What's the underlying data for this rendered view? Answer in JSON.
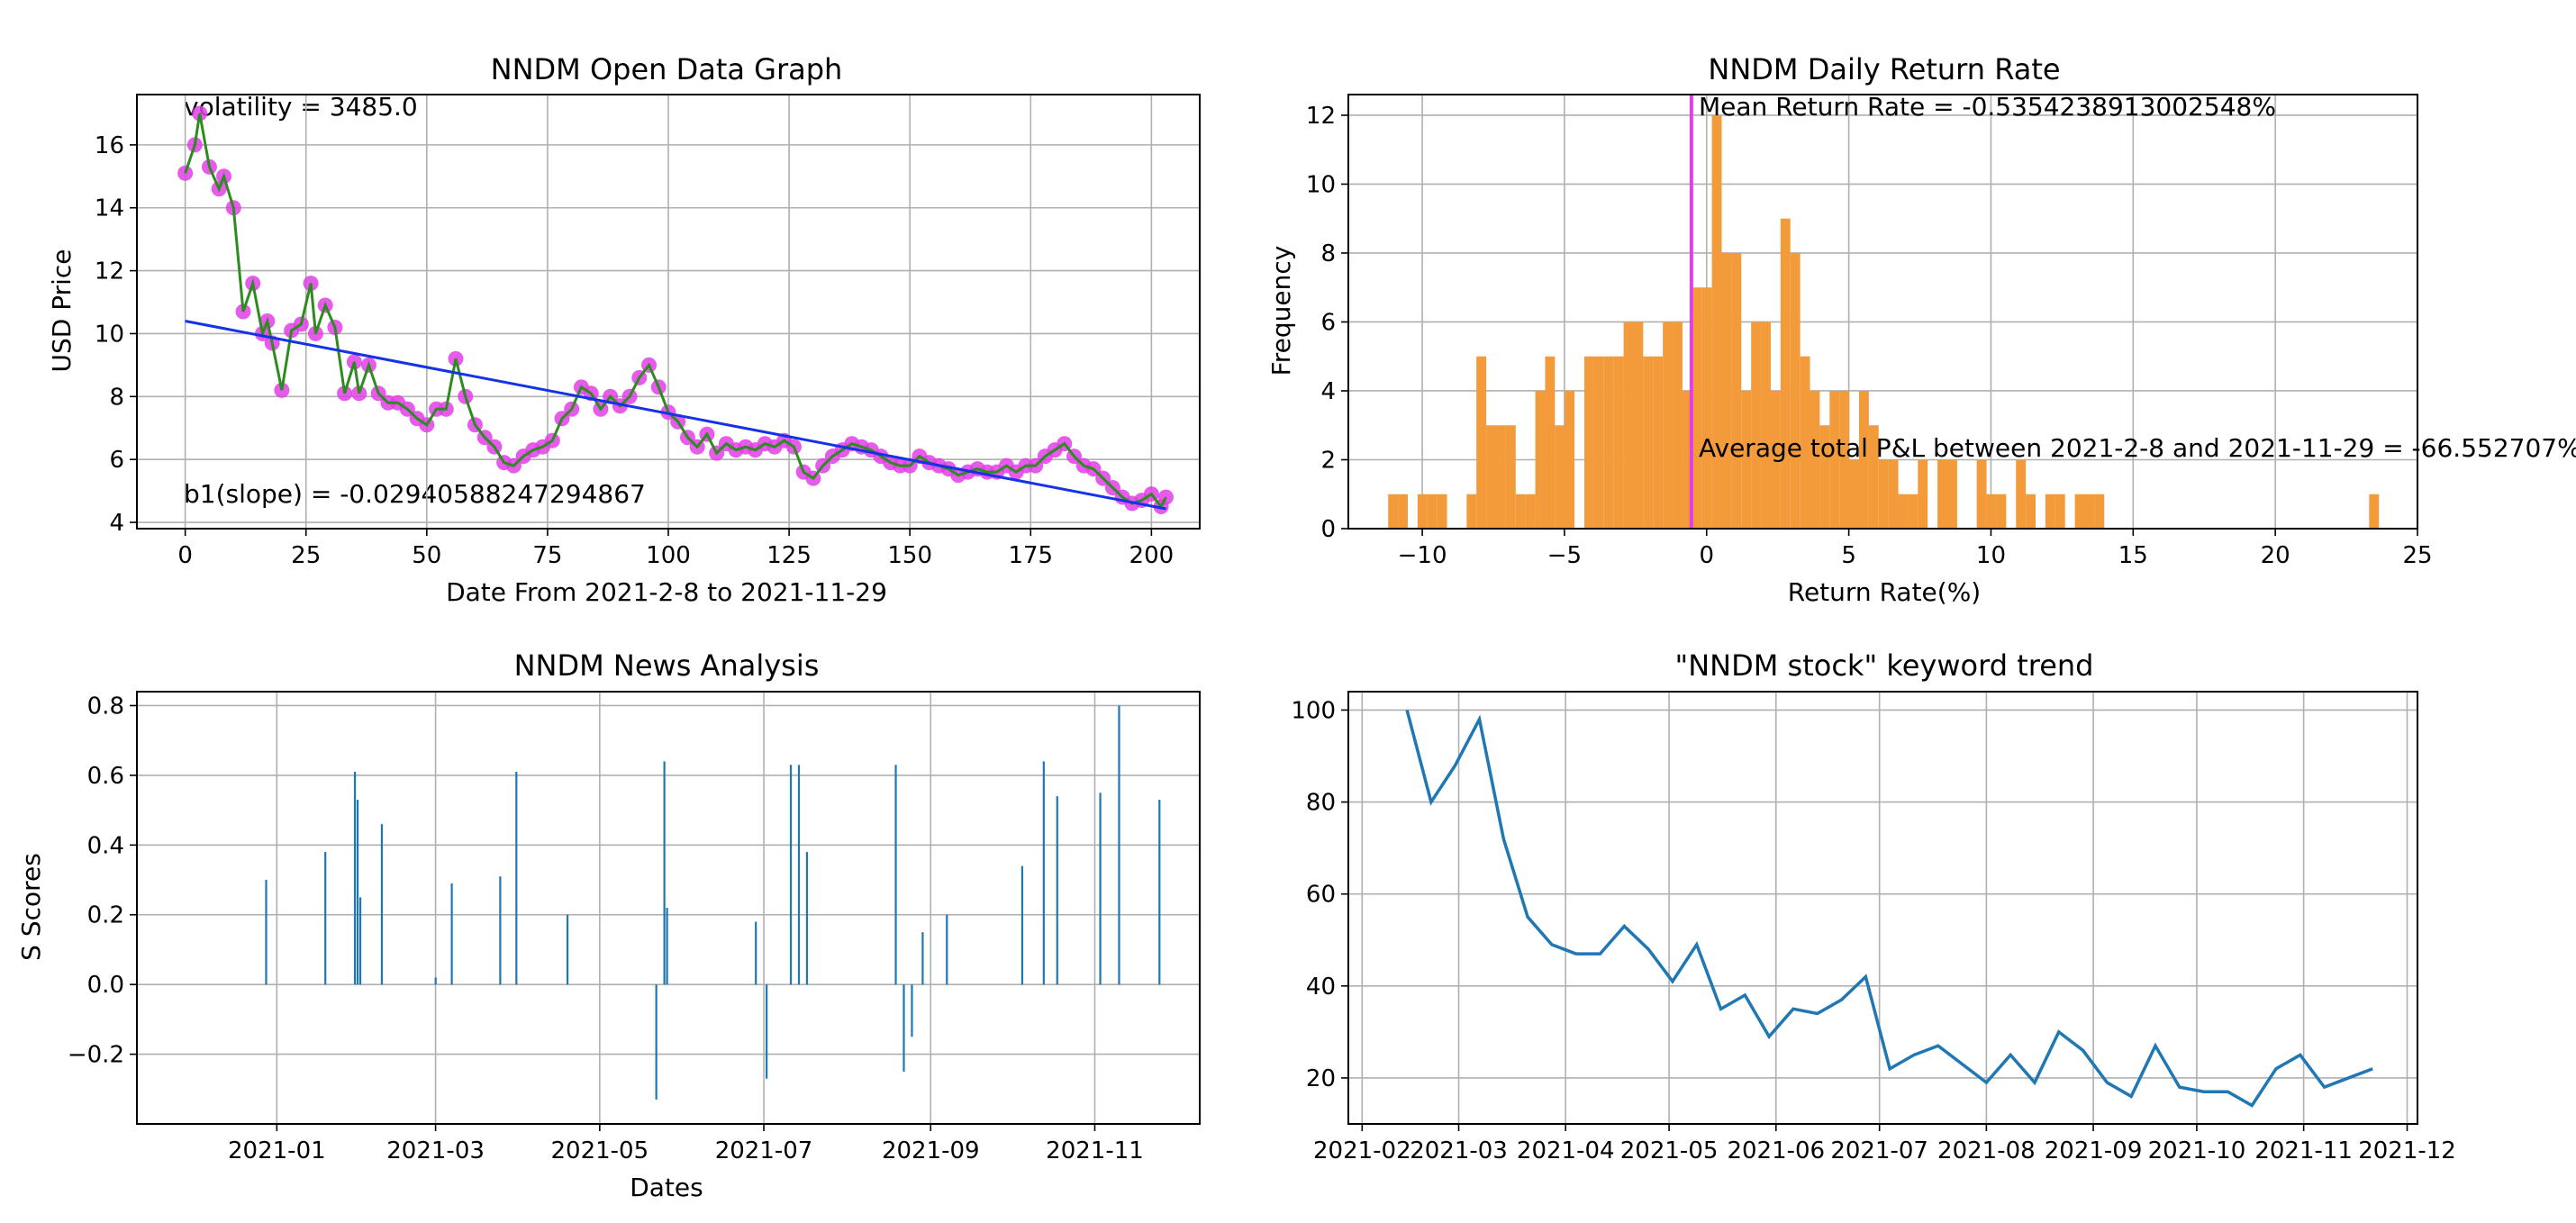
{
  "chart_data": [
    {
      "id": "open",
      "type": "line",
      "title": "NNDM Open Data Graph",
      "xlabel": "Date From 2021-2-8 to 2021-11-29",
      "ylabel": "USD Price",
      "xlim": [
        -10,
        210
      ],
      "ylim": [
        3.8,
        17.6
      ],
      "xticks": [
        0,
        25,
        50,
        75,
        100,
        125,
        150,
        175,
        200
      ],
      "yticks": [
        4,
        6,
        8,
        10,
        12,
        14,
        16
      ],
      "grid": true,
      "annotations": [
        "volatility = 3485.0",
        "b1(slope) = -0.02940588247294867"
      ],
      "trendline": {
        "x": [
          0,
          203
        ],
        "y": [
          10.4,
          4.43
        ]
      },
      "series": [
        {
          "x": [
            0,
            2,
            3,
            5,
            7,
            8,
            10,
            12,
            14,
            16,
            17,
            18,
            20,
            22,
            24,
            26,
            27,
            29,
            31,
            33,
            35,
            36,
            38,
            40,
            42,
            44,
            46,
            48,
            50,
            52,
            54,
            56,
            58,
            60,
            62,
            64,
            66,
            68,
            70,
            72,
            74,
            76,
            78,
            80,
            82,
            84,
            86,
            88,
            90,
            92,
            94,
            96,
            98,
            100,
            102,
            104,
            106,
            108,
            110,
            112,
            114,
            116,
            118,
            120,
            122,
            124,
            126,
            128,
            130,
            132,
            134,
            136,
            138,
            140,
            142,
            144,
            146,
            148,
            150,
            152,
            154,
            156,
            158,
            160,
            162,
            164,
            166,
            168,
            170,
            172,
            174,
            176,
            178,
            180,
            182,
            184,
            186,
            188,
            190,
            192,
            194,
            196,
            198,
            200,
            202,
            203
          ],
          "y": [
            15.1,
            16.0,
            17.0,
            15.3,
            14.6,
            15.0,
            14.0,
            10.7,
            11.6,
            10.0,
            10.4,
            9.7,
            8.2,
            10.1,
            10.3,
            11.6,
            10.0,
            10.9,
            10.2,
            8.1,
            9.1,
            8.1,
            9.0,
            8.1,
            7.8,
            7.8,
            7.6,
            7.3,
            7.1,
            7.6,
            7.6,
            9.2,
            8.0,
            7.1,
            6.7,
            6.4,
            5.9,
            5.8,
            6.1,
            6.3,
            6.4,
            6.6,
            7.3,
            7.6,
            8.3,
            8.1,
            7.6,
            8.0,
            7.7,
            8.0,
            8.6,
            9.0,
            8.3,
            7.5,
            7.2,
            6.7,
            6.4,
            6.8,
            6.2,
            6.5,
            6.3,
            6.4,
            6.3,
            6.5,
            6.4,
            6.6,
            6.4,
            5.6,
            5.4,
            5.8,
            6.1,
            6.3,
            6.5,
            6.4,
            6.3,
            6.1,
            5.9,
            5.8,
            5.8,
            6.1,
            5.9,
            5.8,
            5.7,
            5.5,
            5.6,
            5.7,
            5.6,
            5.6,
            5.8,
            5.6,
            5.8,
            5.8,
            6.1,
            6.3,
            6.5,
            6.1,
            5.8,
            5.7,
            5.4,
            5.1,
            4.8,
            4.6,
            4.7,
            4.9,
            4.5,
            4.8
          ]
        }
      ]
    },
    {
      "id": "returns",
      "type": "bar",
      "title": "NNDM Daily Return Rate",
      "xlabel": "Return Rate(%)",
      "ylabel": "Frequency",
      "xlim": [
        -12.6,
        25
      ],
      "ylim": [
        0,
        12.6
      ],
      "xticks": [
        -10,
        -5,
        0,
        5,
        10,
        15,
        20,
        25
      ],
      "xtick_labels": [
        "−10",
        "−5",
        "0",
        "5",
        "10",
        "15",
        "20",
        "25"
      ],
      "yticks": [
        0,
        2,
        4,
        6,
        8,
        10,
        12
      ],
      "grid": true,
      "mean_line": -0.5354238913002548,
      "annotations": [
        "Mean Return Rate = -0.5354238913002548%",
        "Average total P&L between 2021-2-8 and 2021-11-29 = -66.552707%"
      ],
      "bin_start": -11.2,
      "bin_width": 0.345,
      "values": [
        1,
        1,
        0,
        1,
        1,
        1,
        0,
        0,
        1,
        5,
        3,
        3,
        3,
        1,
        1,
        4,
        5,
        3,
        4,
        0,
        5,
        5,
        5,
        5,
        6,
        6,
        5,
        5,
        6,
        6,
        4,
        7,
        7,
        12,
        8,
        8,
        4,
        6,
        6,
        4,
        9,
        8,
        5,
        4,
        3,
        4,
        4,
        2,
        4,
        3,
        2,
        2,
        1,
        1,
        2,
        0,
        2,
        2,
        0,
        0,
        2,
        1,
        1,
        0,
        2,
        1,
        0,
        1,
        1,
        0,
        1,
        1,
        1,
        0,
        0,
        0,
        0,
        0,
        0,
        0,
        0,
        0,
        0,
        0,
        0,
        0,
        0,
        0,
        0,
        0,
        0,
        0,
        0,
        0,
        0,
        0,
        0,
        0,
        0,
        0,
        1
      ]
    },
    {
      "id": "news",
      "type": "bar",
      "title": "NNDM News Analysis",
      "xlabel": "Dates",
      "ylabel": "S Scores",
      "xlim_days": [
        -52,
        343
      ],
      "ylim": [
        -0.4,
        0.84
      ],
      "date_ticks": [
        {
          "label": "2021-01",
          "day": 0
        },
        {
          "label": "2021-03",
          "day": 59
        },
        {
          "label": "2021-05",
          "day": 120
        },
        {
          "label": "2021-07",
          "day": 181
        },
        {
          "label": "2021-09",
          "day": 243
        },
        {
          "label": "2021-11",
          "day": 304
        }
      ],
      "yticks": [
        -0.2,
        0.0,
        0.2,
        0.4,
        0.6,
        0.8
      ],
      "ytick_labels": [
        "−0.2",
        "0.0",
        "0.2",
        "0.4",
        "0.6",
        "0.8"
      ],
      "grid": true,
      "bars": [
        {
          "day": -4,
          "v": 0.3
        },
        {
          "day": 18,
          "v": 0.38
        },
        {
          "day": 29,
          "v": 0.61
        },
        {
          "day": 30,
          "v": 0.53
        },
        {
          "day": 31,
          "v": 0.25
        },
        {
          "day": 39,
          "v": 0.46
        },
        {
          "day": 59,
          "v": 0.02
        },
        {
          "day": 65,
          "v": 0.29
        },
        {
          "day": 83,
          "v": 0.31
        },
        {
          "day": 89,
          "v": 0.61
        },
        {
          "day": 108,
          "v": 0.2
        },
        {
          "day": 141,
          "v": -0.33
        },
        {
          "day": 144,
          "v": 0.64
        },
        {
          "day": 145,
          "v": 0.22
        },
        {
          "day": 178,
          "v": 0.18
        },
        {
          "day": 182,
          "v": -0.27
        },
        {
          "day": 191,
          "v": 0.63
        },
        {
          "day": 194,
          "v": 0.63
        },
        {
          "day": 197,
          "v": 0.38
        },
        {
          "day": 230,
          "v": 0.63
        },
        {
          "day": 233,
          "v": -0.25
        },
        {
          "day": 236,
          "v": -0.15
        },
        {
          "day": 240,
          "v": 0.15
        },
        {
          "day": 249,
          "v": 0.2
        },
        {
          "day": 277,
          "v": 0.34
        },
        {
          "day": 285,
          "v": 0.64
        },
        {
          "day": 290,
          "v": 0.54
        },
        {
          "day": 306,
          "v": 0.55
        },
        {
          "day": 313,
          "v": 0.8
        },
        {
          "day": 328,
          "v": 0.53
        }
      ]
    },
    {
      "id": "trend",
      "type": "line",
      "title": "\"NNDM stock\" keyword trend",
      "xlabel": "",
      "ylabel": "",
      "xlim_days": [
        -4,
        306
      ],
      "ylim": [
        10,
        104
      ],
      "date_ticks": [
        {
          "label": "2021-02",
          "day": 0
        },
        {
          "label": "2021-03",
          "day": 28
        },
        {
          "label": "2021-04",
          "day": 59
        },
        {
          "label": "2021-05",
          "day": 89
        },
        {
          "label": "2021-06",
          "day": 120
        },
        {
          "label": "2021-07",
          "day": 150
        },
        {
          "label": "2021-08",
          "day": 181
        },
        {
          "label": "2021-09",
          "day": 212
        },
        {
          "label": "2021-10",
          "day": 242
        },
        {
          "label": "2021-11",
          "day": 273
        },
        {
          "label": "2021-12",
          "day": 303
        }
      ],
      "yticks": [
        20,
        40,
        60,
        80,
        100
      ],
      "grid": true,
      "series": [
        {
          "x": [
            13,
            20,
            27,
            34,
            41,
            48,
            55,
            62,
            69,
            76,
            83,
            90,
            97,
            104,
            111,
            118,
            125,
            132,
            139,
            146,
            153,
            160,
            167,
            174,
            181,
            188,
            195,
            202,
            209,
            216,
            223,
            230,
            237,
            244,
            251,
            258,
            265,
            272,
            279,
            286,
            293
          ],
          "y": [
            100,
            80,
            88,
            98,
            72,
            55,
            49,
            47,
            47,
            53,
            48,
            41,
            49,
            35,
            38,
            29,
            35,
            34,
            37,
            42,
            22,
            25,
            27,
            23,
            19,
            25,
            19,
            30,
            26,
            19,
            16,
            27,
            18,
            17,
            17,
            14,
            22,
            25,
            18,
            20,
            22
          ]
        }
      ]
    }
  ]
}
